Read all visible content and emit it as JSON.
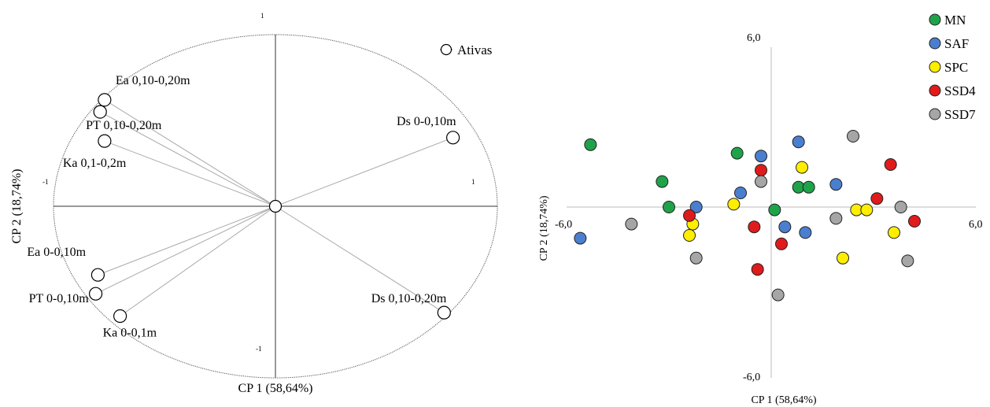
{
  "chart_data": [
    {
      "type": "scatter",
      "subtype": "correlation-circle",
      "title": "",
      "xlabel": "CP 1 (58,64%)",
      "ylabel": "CP 2 (18,74%)",
      "xlim": [
        -1,
        1
      ],
      "ylim": [
        -1,
        1
      ],
      "ticks": {
        "top": "1",
        "bottom": "-1",
        "left": "-1",
        "right": "1"
      },
      "legend": {
        "position": "top-right",
        "entries": [
          "Ativas"
        ]
      },
      "marker": "open-circle",
      "series": [
        {
          "name": "Ativas",
          "points": [
            {
              "label": "Ea 0,10-0,20m",
              "x": -0.77,
              "y": 0.62
            },
            {
              "label": "PT 0,10-0,20m",
              "x": -0.79,
              "y": 0.55
            },
            {
              "label": "Ka 0,1-0,2m",
              "x": -0.77,
              "y": 0.38
            },
            {
              "label": "Ds 0-0,10m",
              "x": 0.8,
              "y": 0.4
            },
            {
              "label": "Ea 0-0,10m",
              "x": -0.8,
              "y": -0.4
            },
            {
              "label": "PT 0-0,10m",
              "x": -0.81,
              "y": -0.51
            },
            {
              "label": "Ka 0-0,1m",
              "x": -0.7,
              "y": -0.64
            },
            {
              "label": "Ds 0,10-0,20m",
              "x": 0.76,
              "y": -0.62
            }
          ]
        }
      ]
    },
    {
      "type": "scatter",
      "title": "",
      "xlabel": "CP 1 (58,64%)",
      "ylabel": "CP 2 (18,74%)",
      "xlim": [
        -6,
        6
      ],
      "ylim": [
        -6,
        6
      ],
      "ticks": {
        "top": "6,0",
        "bottom": "-6,0",
        "left": "-6,0",
        "right": "6,0"
      },
      "legend": {
        "position": "top-right"
      },
      "series": [
        {
          "name": "MN",
          "color": "#1fa34a",
          "points": [
            [
              -5.3,
              2.2
            ],
            [
              -1.0,
              1.9
            ],
            [
              -3.2,
              0.9
            ],
            [
              -3.0,
              0.0
            ],
            [
              0.8,
              0.7
            ],
            [
              1.1,
              0.7
            ],
            [
              0.1,
              -0.1
            ]
          ]
        },
        {
          "name": "SAF",
          "color": "#4a7fd0",
          "points": [
            [
              -5.6,
              -1.1
            ],
            [
              -2.2,
              0.0
            ],
            [
              -0.3,
              1.8
            ],
            [
              0.8,
              2.3
            ],
            [
              -0.9,
              0.5
            ],
            [
              0.4,
              -0.7
            ],
            [
              1.0,
              -0.9
            ],
            [
              1.9,
              0.8
            ]
          ]
        },
        {
          "name": "SPC",
          "color": "#ffee00",
          "points": [
            [
              0.9,
              1.4
            ],
            [
              -1.1,
              0.1
            ],
            [
              -2.3,
              -0.6
            ],
            [
              -2.4,
              -1.0
            ],
            [
              2.5,
              -0.1
            ],
            [
              2.8,
              -0.1
            ],
            [
              3.6,
              -0.9
            ],
            [
              2.1,
              -1.8
            ]
          ]
        },
        {
          "name": "SSD4",
          "color": "#e01b1b",
          "points": [
            [
              -0.3,
              1.3
            ],
            [
              -2.4,
              -0.3
            ],
            [
              -0.5,
              -0.7
            ],
            [
              0.3,
              -1.3
            ],
            [
              -0.4,
              -2.2
            ],
            [
              3.5,
              1.5
            ],
            [
              3.1,
              0.3
            ],
            [
              4.2,
              -0.5
            ]
          ]
        },
        {
          "name": "SSD7",
          "color": "#a6a6a6",
          "points": [
            [
              -4.1,
              -0.6
            ],
            [
              -2.2,
              -1.8
            ],
            [
              -0.3,
              0.9
            ],
            [
              2.4,
              2.5
            ],
            [
              1.9,
              -0.4
            ],
            [
              3.8,
              0.0
            ],
            [
              4.0,
              -1.9
            ],
            [
              0.2,
              -3.1
            ]
          ]
        }
      ]
    }
  ]
}
